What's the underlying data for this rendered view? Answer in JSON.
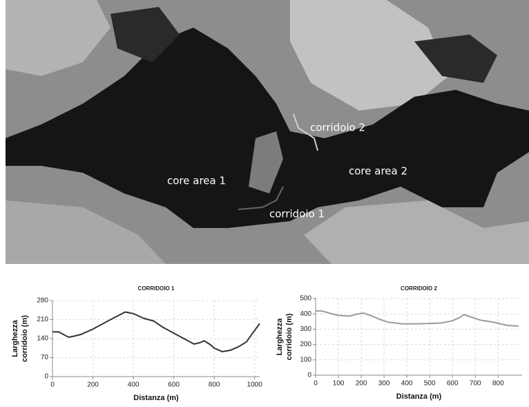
{
  "map": {
    "labels": [
      "corridoio 2",
      "core area 2",
      "core area 1",
      "corridoio 1"
    ]
  },
  "chart_data": [
    {
      "type": "line",
      "title": "CORRIDOIO 1",
      "x_label": "Distanza (m)",
      "y_label": [
        "Larghezza",
        "corridoio (m)"
      ],
      "x": [
        0,
        30,
        80,
        100,
        140,
        200,
        300,
        360,
        400,
        450,
        500,
        550,
        600,
        650,
        700,
        730,
        750,
        780,
        800,
        840,
        880,
        920,
        960,
        990,
        1025
      ],
      "values": [
        165,
        165,
        145,
        148,
        155,
        175,
        215,
        238,
        232,
        215,
        205,
        180,
        160,
        140,
        120,
        125,
        132,
        118,
        105,
        92,
        97,
        110,
        128,
        160,
        195
      ],
      "color": "#333333",
      "xlim": [
        0,
        1025
      ],
      "ylim": [
        0,
        280
      ],
      "xticks": [
        0,
        200,
        400,
        600,
        800,
        1000
      ],
      "yticks": [
        0,
        70,
        140,
        210,
        280
      ],
      "grid": true
    },
    {
      "type": "line",
      "title": "CORRIDOIO 2",
      "x_label": "Distanza (m)",
      "y_label": [
        "Larghezza",
        "corridoio (m)"
      ],
      "x": [
        0,
        30,
        60,
        100,
        150,
        180,
        210,
        240,
        280,
        320,
        380,
        450,
        550,
        600,
        630,
        650,
        680,
        720,
        780,
        840,
        890
      ],
      "values": [
        420,
        418,
        405,
        390,
        385,
        398,
        405,
        390,
        365,
        345,
        335,
        335,
        340,
        355,
        375,
        395,
        380,
        360,
        345,
        325,
        320
      ],
      "color": "#9a9a9a",
      "xlim": [
        0,
        905
      ],
      "ylim": [
        0,
        500
      ],
      "xticks": [
        0,
        100,
        200,
        300,
        400,
        500,
        600,
        700,
        800
      ],
      "yticks": [
        0,
        100,
        200,
        300,
        400,
        500
      ],
      "grid": true
    }
  ]
}
